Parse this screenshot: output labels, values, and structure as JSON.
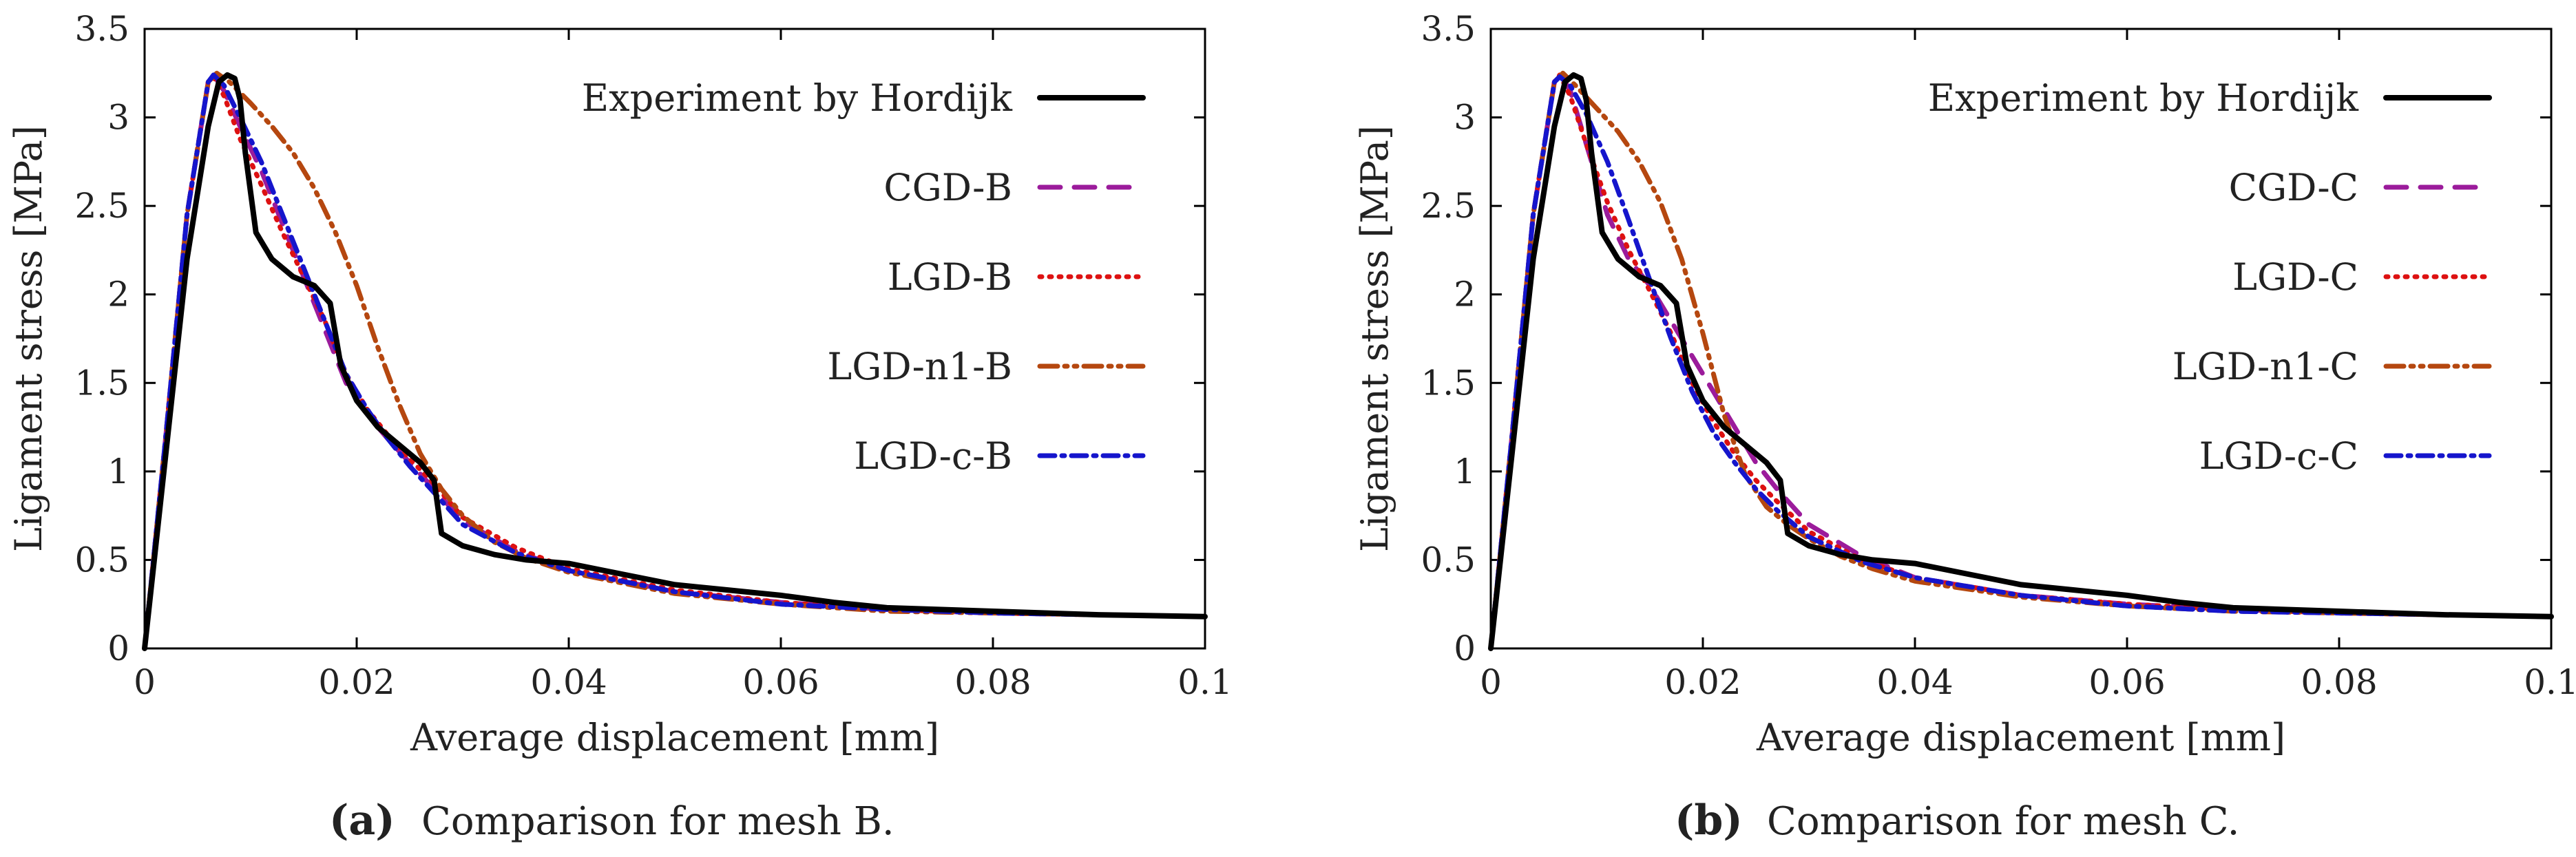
{
  "chart_data": [
    {
      "type": "line",
      "panel": "a",
      "caption_tag": "(a)",
      "caption": "Comparison for mesh B.",
      "xlabel": "Average displacement [mm]",
      "ylabel": "Ligament stress [MPa]",
      "xlim": [
        0,
        0.1
      ],
      "ylim": [
        0,
        3.5
      ],
      "xticks": [
        "0",
        "0.02",
        "0.04",
        "0.06",
        "0.08",
        "0.1"
      ],
      "yticks": [
        "0",
        "0.5",
        "1",
        "1.5",
        "2",
        "2.5",
        "3",
        "3.5"
      ],
      "legend_position": "top-right",
      "series": [
        {
          "name": "Experiment by Hordijk",
          "color": "#000000",
          "dash": "solid",
          "x": [
            0,
            0.002,
            0.004,
            0.006,
            0.007,
            0.0078,
            0.0085,
            0.009,
            0.0095,
            0.0105,
            0.012,
            0.014,
            0.016,
            0.0175,
            0.0185,
            0.02,
            0.022,
            0.024,
            0.026,
            0.0273,
            0.028,
            0.03,
            0.033,
            0.036,
            0.04,
            0.045,
            0.05,
            0.055,
            0.06,
            0.065,
            0.07,
            0.08,
            0.09,
            0.1
          ],
          "y": [
            0,
            1.1,
            2.2,
            2.95,
            3.2,
            3.24,
            3.22,
            3.1,
            2.8,
            2.35,
            2.2,
            2.1,
            2.05,
            1.95,
            1.6,
            1.4,
            1.25,
            1.15,
            1.05,
            0.95,
            0.65,
            0.58,
            0.53,
            0.5,
            0.48,
            0.42,
            0.36,
            0.33,
            0.3,
            0.26,
            0.23,
            0.21,
            0.19,
            0.18
          ]
        },
        {
          "name": "CGD-B",
          "color": "#9b1b9b",
          "dash": "long-dash",
          "x": [
            0,
            0.002,
            0.004,
            0.006,
            0.0065,
            0.0075,
            0.009,
            0.011,
            0.013,
            0.015,
            0.017,
            0.019,
            0.021,
            0.023,
            0.025,
            0.027,
            0.03,
            0.035,
            0.04,
            0.05,
            0.06,
            0.07,
            0.08,
            0.09,
            0.1
          ],
          "y": [
            0,
            1.2,
            2.45,
            3.2,
            3.24,
            3.15,
            2.95,
            2.7,
            2.4,
            2.1,
            1.8,
            1.5,
            1.32,
            1.18,
            1.05,
            0.92,
            0.72,
            0.55,
            0.44,
            0.32,
            0.26,
            0.22,
            0.2,
            0.19,
            0.18
          ]
        },
        {
          "name": "LGD-B",
          "color": "#dd1111",
          "dash": "dotted",
          "x": [
            0,
            0.002,
            0.004,
            0.006,
            0.0065,
            0.0075,
            0.009,
            0.011,
            0.013,
            0.015,
            0.017,
            0.019,
            0.021,
            0.023,
            0.025,
            0.027,
            0.03,
            0.035,
            0.04,
            0.05,
            0.06,
            0.07,
            0.08,
            0.09,
            0.1
          ],
          "y": [
            0,
            1.2,
            2.45,
            3.2,
            3.23,
            3.12,
            2.88,
            2.62,
            2.35,
            2.1,
            1.85,
            1.55,
            1.35,
            1.2,
            1.07,
            0.95,
            0.74,
            0.57,
            0.45,
            0.33,
            0.26,
            0.22,
            0.2,
            0.19,
            0.18
          ]
        },
        {
          "name": "LGD-n1-B",
          "color": "#b5470f",
          "dash": "dash-dot-dot",
          "x": [
            0,
            0.002,
            0.004,
            0.006,
            0.0068,
            0.008,
            0.01,
            0.012,
            0.014,
            0.016,
            0.018,
            0.02,
            0.022,
            0.024,
            0.026,
            0.028,
            0.03,
            0.033,
            0.036,
            0.04,
            0.05,
            0.06,
            0.07,
            0.08,
            0.09,
            0.1
          ],
          "y": [
            0,
            1.2,
            2.45,
            3.2,
            3.25,
            3.2,
            3.08,
            2.95,
            2.8,
            2.6,
            2.35,
            2.05,
            1.7,
            1.38,
            1.1,
            0.9,
            0.75,
            0.6,
            0.51,
            0.43,
            0.31,
            0.25,
            0.21,
            0.2,
            0.19,
            0.18
          ]
        },
        {
          "name": "LGD-c-B",
          "color": "#1515cc",
          "dash": "dash-dot",
          "x": [
            0,
            0.002,
            0.004,
            0.006,
            0.0065,
            0.0075,
            0.009,
            0.011,
            0.013,
            0.015,
            0.017,
            0.019,
            0.021,
            0.023,
            0.025,
            0.027,
            0.03,
            0.035,
            0.04,
            0.05,
            0.06,
            0.07,
            0.08,
            0.09,
            0.1
          ],
          "y": [
            0,
            1.2,
            2.45,
            3.2,
            3.24,
            3.18,
            3.0,
            2.75,
            2.45,
            2.15,
            1.85,
            1.55,
            1.35,
            1.18,
            1.03,
            0.9,
            0.7,
            0.54,
            0.44,
            0.32,
            0.25,
            0.22,
            0.2,
            0.19,
            0.18
          ]
        }
      ]
    },
    {
      "type": "line",
      "panel": "b",
      "caption_tag": "(b)",
      "caption": "Comparison for mesh C.",
      "xlabel": "Average displacement [mm]",
      "ylabel": "Ligament stress [MPa]",
      "xlim": [
        0,
        0.1
      ],
      "ylim": [
        0,
        3.5
      ],
      "xticks": [
        "0",
        "0.02",
        "0.04",
        "0.06",
        "0.08",
        "0.1"
      ],
      "yticks": [
        "0",
        "0.5",
        "1",
        "1.5",
        "2",
        "2.5",
        "3",
        "3.5"
      ],
      "legend_position": "top-right",
      "series": [
        {
          "name": "Experiment by Hordijk",
          "color": "#000000",
          "dash": "solid",
          "x": [
            0,
            0.002,
            0.004,
            0.006,
            0.007,
            0.0078,
            0.0085,
            0.009,
            0.0095,
            0.0105,
            0.012,
            0.014,
            0.016,
            0.0175,
            0.0185,
            0.02,
            0.022,
            0.024,
            0.026,
            0.0273,
            0.028,
            0.03,
            0.033,
            0.036,
            0.04,
            0.045,
            0.05,
            0.055,
            0.06,
            0.065,
            0.07,
            0.08,
            0.09,
            0.1
          ],
          "y": [
            0,
            1.1,
            2.2,
            2.95,
            3.2,
            3.24,
            3.22,
            3.1,
            2.8,
            2.35,
            2.2,
            2.1,
            2.05,
            1.95,
            1.6,
            1.4,
            1.25,
            1.15,
            1.05,
            0.95,
            0.65,
            0.58,
            0.53,
            0.5,
            0.48,
            0.42,
            0.36,
            0.33,
            0.3,
            0.26,
            0.23,
            0.21,
            0.19,
            0.18
          ]
        },
        {
          "name": "CGD-C",
          "color": "#9b1b9b",
          "dash": "long-dash",
          "x": [
            0,
            0.002,
            0.004,
            0.006,
            0.0065,
            0.0075,
            0.009,
            0.011,
            0.013,
            0.015,
            0.017,
            0.019,
            0.021,
            0.023,
            0.025,
            0.027,
            0.03,
            0.035,
            0.04,
            0.05,
            0.06,
            0.07,
            0.08,
            0.09,
            0.1
          ],
          "y": [
            0,
            1.2,
            2.45,
            3.2,
            3.25,
            3.15,
            2.85,
            2.45,
            2.2,
            2.05,
            1.85,
            1.65,
            1.45,
            1.25,
            1.05,
            0.9,
            0.7,
            0.52,
            0.4,
            0.3,
            0.25,
            0.22,
            0.2,
            0.19,
            0.18
          ]
        },
        {
          "name": "LGD-C",
          "color": "#dd1111",
          "dash": "dotted",
          "x": [
            0,
            0.002,
            0.004,
            0.006,
            0.0065,
            0.0075,
            0.009,
            0.011,
            0.013,
            0.015,
            0.017,
            0.019,
            0.021,
            0.023,
            0.025,
            0.027,
            0.03,
            0.035,
            0.04,
            0.05,
            0.06,
            0.07,
            0.08,
            0.09,
            0.1
          ],
          "y": [
            0,
            1.2,
            2.45,
            3.2,
            3.24,
            3.12,
            2.85,
            2.52,
            2.25,
            2.02,
            1.78,
            1.5,
            1.28,
            1.1,
            0.95,
            0.83,
            0.66,
            0.5,
            0.4,
            0.3,
            0.25,
            0.22,
            0.2,
            0.19,
            0.18
          ]
        },
        {
          "name": "LGD-n1-C",
          "color": "#b5470f",
          "dash": "dash-dot-dot",
          "x": [
            0,
            0.002,
            0.004,
            0.006,
            0.0068,
            0.008,
            0.01,
            0.012,
            0.014,
            0.016,
            0.018,
            0.02,
            0.022,
            0.024,
            0.026,
            0.028,
            0.03,
            0.033,
            0.036,
            0.04,
            0.05,
            0.06,
            0.07,
            0.08,
            0.09,
            0.1
          ],
          "y": [
            0,
            1.2,
            2.45,
            3.2,
            3.25,
            3.18,
            3.05,
            2.92,
            2.75,
            2.52,
            2.2,
            1.78,
            1.32,
            0.98,
            0.8,
            0.7,
            0.62,
            0.52,
            0.45,
            0.38,
            0.29,
            0.24,
            0.21,
            0.2,
            0.19,
            0.18
          ]
        },
        {
          "name": "LGD-c-C",
          "color": "#1515cc",
          "dash": "dash-dot",
          "x": [
            0,
            0.002,
            0.004,
            0.006,
            0.0065,
            0.0075,
            0.009,
            0.011,
            0.013,
            0.015,
            0.017,
            0.019,
            0.021,
            0.023,
            0.025,
            0.027,
            0.03,
            0.035,
            0.04,
            0.05,
            0.06,
            0.07,
            0.08,
            0.09,
            0.1
          ],
          "y": [
            0,
            1.2,
            2.45,
            3.2,
            3.23,
            3.18,
            3.02,
            2.75,
            2.42,
            2.08,
            1.75,
            1.45,
            1.22,
            1.05,
            0.9,
            0.78,
            0.63,
            0.49,
            0.4,
            0.3,
            0.24,
            0.21,
            0.2,
            0.19,
            0.18
          ]
        }
      ]
    }
  ]
}
